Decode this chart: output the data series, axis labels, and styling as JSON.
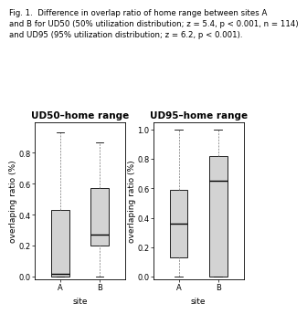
{
  "caption_lines": [
    "Fig. 1.  Difference in overlap ratio of home range between sites A",
    "and B for UD50 (50% utilization distribution; z = 5.4, p < 0.001, n = 114)",
    "and UD95 (95% utilization distribution; z = 6.2, p < 0.001)."
  ],
  "plot1_title": "UD50–home range",
  "plot2_title": "UD95–home range",
  "ylabel": "overlaping ratio (%)",
  "xlabel": "site",
  "box_color": "#d3d3d3",
  "median_color": "#000000",
  "whisker_color": "#888888",
  "ud50": {
    "A": {
      "whisker_low": 0.0,
      "q1": 0.0,
      "median": 0.02,
      "q3": 0.43,
      "whisker_high": 0.93
    },
    "B": {
      "whisker_low": 0.0,
      "q1": 0.2,
      "median": 0.27,
      "q3": 0.57,
      "whisker_high": 0.87
    }
  },
  "ud95": {
    "A": {
      "whisker_low": 0.0,
      "q1": 0.13,
      "median": 0.36,
      "q3": 0.59,
      "whisker_high": 1.0
    },
    "B": {
      "whisker_low": 0.0,
      "q1": 0.0,
      "median": 0.65,
      "q3": 0.82,
      "whisker_high": 1.0
    }
  },
  "ud50_ylim": [
    -0.02,
    1.0
  ],
  "ud95_ylim": [
    -0.02,
    1.05
  ],
  "ud50_yticks": [
    0.0,
    0.2,
    0.4,
    0.6,
    0.8
  ],
  "ud95_yticks": [
    0.0,
    0.2,
    0.4,
    0.6,
    0.8,
    1.0
  ],
  "caption_fontsize": 6.2,
  "title_fontsize": 7.5,
  "label_fontsize": 6.5,
  "tick_fontsize": 6.0
}
